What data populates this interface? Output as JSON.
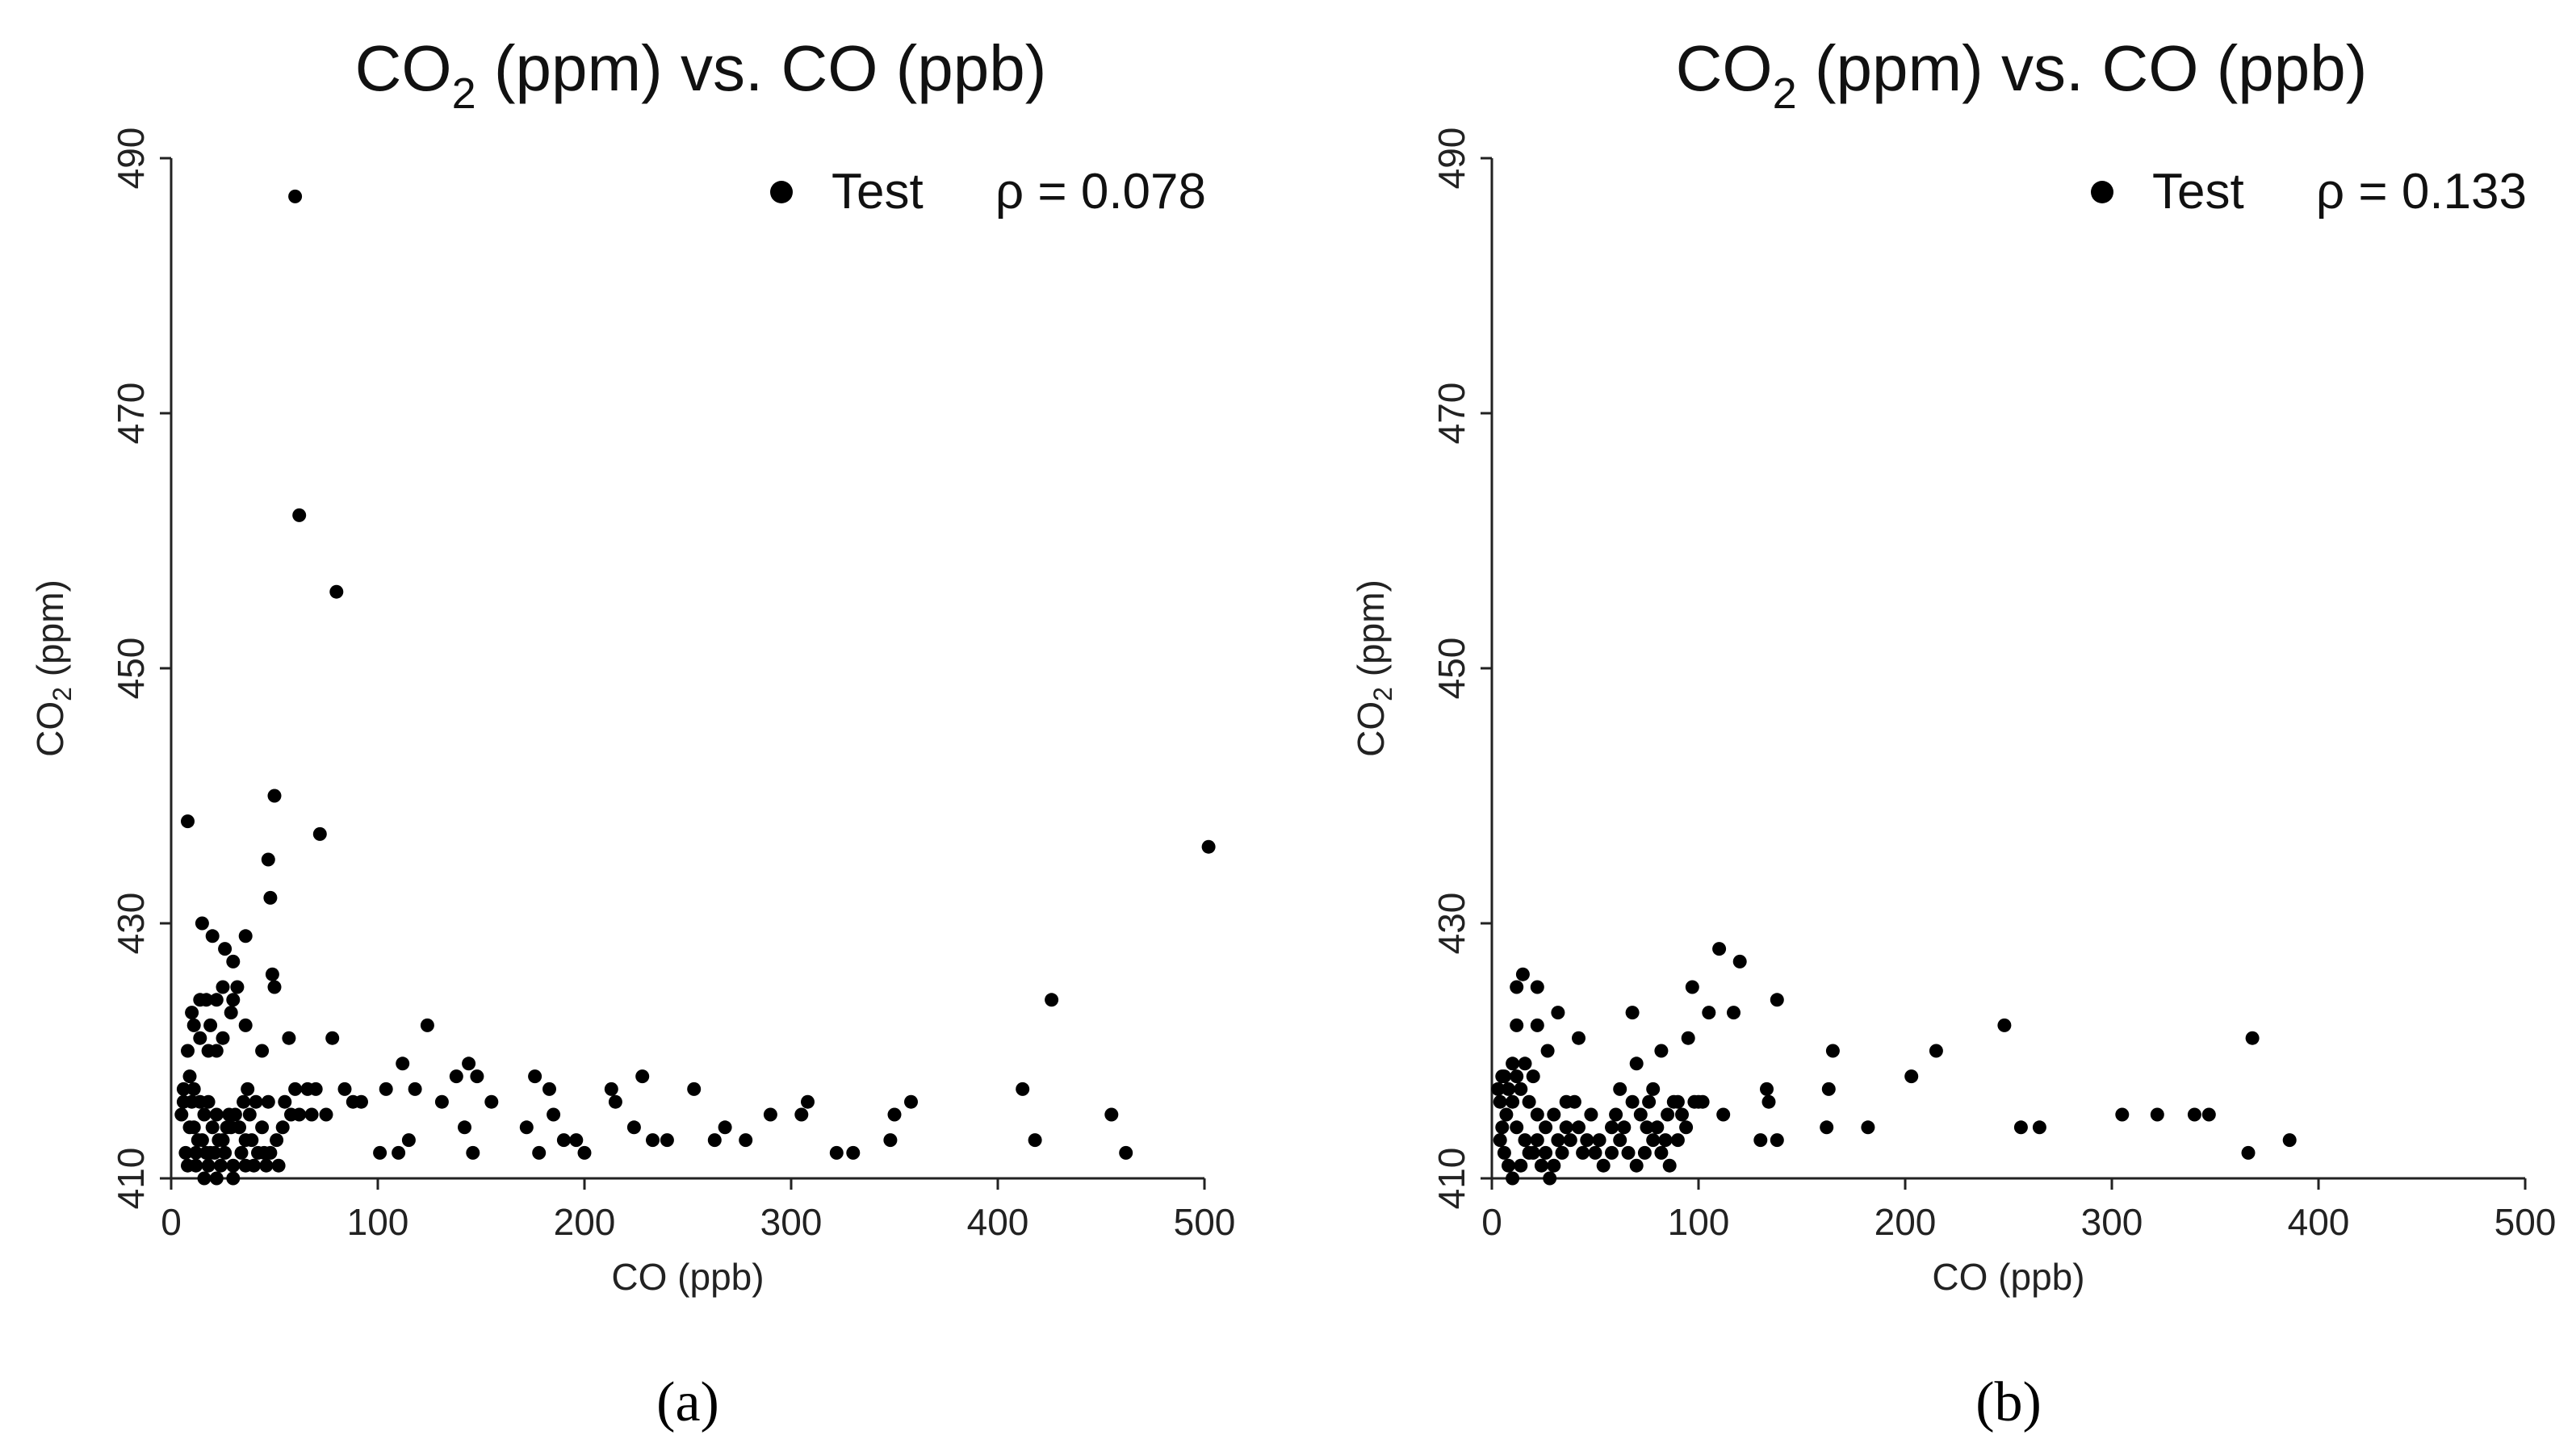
{
  "chart_data": [
    {
      "type": "scatter",
      "panel_label": "(a)",
      "title": "CO2 (ppm) vs. CO (ppb)",
      "title_parts": {
        "pre": "CO",
        "sub": "2",
        "post": " (ppm) vs. CO (ppb)"
      },
      "xlabel": "CO (ppb)",
      "ylabel_parts": {
        "pre": "CO",
        "sub": "2",
        "post": " (ppm)"
      },
      "xlim": [
        0,
        500
      ],
      "ylim": [
        410,
        490
      ],
      "xticks": [
        "0",
        "100",
        "200",
        "300",
        "400",
        "500"
      ],
      "yticks": [
        "410",
        "430",
        "450",
        "470",
        "490"
      ],
      "legend": {
        "label": "Test",
        "stat": "ρ = 0.078",
        "position": "top-right"
      },
      "colors": {
        "marker": "#000000",
        "axis": "#222222"
      },
      "series": [
        {
          "name": "Test",
          "points": [
            [
              60,
              487
            ],
            [
              62,
              462
            ],
            [
              80,
              456
            ],
            [
              8,
              438
            ],
            [
              50,
              440
            ],
            [
              72,
              437
            ],
            [
              47,
              435
            ],
            [
              48,
              432
            ],
            [
              502,
              436
            ],
            [
              15,
              430
            ],
            [
              36,
              429
            ],
            [
              20,
              429
            ],
            [
              26,
              428
            ],
            [
              30,
              427
            ],
            [
              49,
              426
            ],
            [
              50,
              425
            ],
            [
              32,
              425
            ],
            [
              25,
              425
            ],
            [
              30,
              424
            ],
            [
              17,
              424
            ],
            [
              22,
              424
            ],
            [
              14,
              424
            ],
            [
              10,
              423
            ],
            [
              29,
              423
            ],
            [
              36,
              422
            ],
            [
              426,
              424
            ],
            [
              124,
              422
            ],
            [
              11,
              422
            ],
            [
              19,
              422
            ],
            [
              25,
              421
            ],
            [
              57,
              421
            ],
            [
              78,
              421
            ],
            [
              14,
              421
            ],
            [
              22,
              420
            ],
            [
              18,
              420
            ],
            [
              44,
              420
            ],
            [
              8,
              420
            ],
            [
              412,
              417
            ],
            [
              148,
              418
            ],
            [
              176,
              418
            ],
            [
              213,
              417
            ],
            [
              228,
              418
            ],
            [
              253,
              417
            ],
            [
              138,
              418
            ],
            [
              183,
              417
            ],
            [
              112,
              419
            ],
            [
              144,
              419
            ],
            [
              118,
              417
            ],
            [
              104,
              417
            ],
            [
              84,
              417
            ],
            [
              66,
              417
            ],
            [
              70,
              417
            ],
            [
              131,
              416
            ],
            [
              155,
              416
            ],
            [
              185,
              415
            ],
            [
              215,
              416
            ],
            [
              290,
              415
            ],
            [
              308,
              416
            ],
            [
              358,
              416
            ],
            [
              350,
              415
            ],
            [
              455,
              415
            ],
            [
              268,
              414
            ],
            [
              240,
              413
            ],
            [
              224,
              414
            ],
            [
              233,
              413
            ],
            [
              263,
              413
            ],
            [
              278,
              413
            ],
            [
              305,
              415
            ],
            [
              348,
              413
            ],
            [
              322,
              412
            ],
            [
              330,
              412
            ],
            [
              462,
              412
            ],
            [
              418,
              413
            ],
            [
              172,
              414
            ],
            [
              190,
              413
            ],
            [
              196,
              413
            ],
            [
              200,
              412
            ],
            [
              178,
              412
            ],
            [
              146,
              412
            ],
            [
              142,
              414
            ],
            [
              115,
              413
            ],
            [
              101,
              412
            ],
            [
              110,
              412
            ],
            [
              88,
              416
            ],
            [
              92,
              416
            ],
            [
              60,
              417
            ],
            [
              55,
              416
            ],
            [
              47,
              416
            ],
            [
              41,
              416
            ],
            [
              37,
              417
            ],
            [
              35,
              416
            ],
            [
              31,
              415
            ],
            [
              28,
              415
            ],
            [
              22,
              415
            ],
            [
              18,
              416
            ],
            [
              14,
              416
            ],
            [
              10,
              416
            ],
            [
              6,
              416
            ],
            [
              5,
              415
            ],
            [
              9,
              414
            ],
            [
              11,
              414
            ],
            [
              13,
              413
            ],
            [
              15,
              413
            ],
            [
              17,
              412
            ],
            [
              19,
              412
            ],
            [
              21,
              412
            ],
            [
              23,
              413
            ],
            [
              25,
              413
            ],
            [
              27,
              414
            ],
            [
              29,
              414
            ],
            [
              33,
              414
            ],
            [
              36,
              413
            ],
            [
              39,
              413
            ],
            [
              42,
              412
            ],
            [
              45,
              412
            ],
            [
              48,
              412
            ],
            [
              51,
              413
            ],
            [
              54,
              414
            ],
            [
              58,
              415
            ],
            [
              62,
              415
            ],
            [
              68,
              415
            ],
            [
              75,
              415
            ],
            [
              8,
              411
            ],
            [
              12,
              411
            ],
            [
              18,
              411
            ],
            [
              24,
              411
            ],
            [
              30,
              411
            ],
            [
              36,
              411
            ],
            [
              40,
              411
            ],
            [
              46,
              411
            ],
            [
              52,
              411
            ],
            [
              30,
              410
            ],
            [
              22,
              410
            ],
            [
              16,
              410
            ],
            [
              12,
              412
            ],
            [
              7,
              412
            ],
            [
              44,
              414
            ],
            [
              38,
              415
            ],
            [
              34,
              412
            ],
            [
              26,
              412
            ],
            [
              20,
              414
            ],
            [
              16,
              415
            ],
            [
              11,
              417
            ],
            [
              9,
              418
            ],
            [
              6,
              417
            ]
          ]
        }
      ]
    },
    {
      "type": "scatter",
      "panel_label": "(b)",
      "title": "CO2 (ppm) vs. CO (ppb)",
      "title_parts": {
        "pre": "CO",
        "sub": "2",
        "post": " (ppm) vs. CO (ppb)"
      },
      "xlabel": "CO (ppb)",
      "ylabel_parts": {
        "pre": "CO",
        "sub": "2",
        "post": " (ppm)"
      },
      "xlim": [
        0,
        500
      ],
      "ylim": [
        410,
        490
      ],
      "xticks": [
        "0",
        "100",
        "200",
        "300",
        "400",
        "500"
      ],
      "yticks": [
        "410",
        "430",
        "450",
        "470",
        "490"
      ],
      "legend": {
        "label": "Test",
        "stat": "ρ = 0.133",
        "position": "top-right"
      },
      "colors": {
        "marker": "#000000",
        "axis": "#222222"
      },
      "series": [
        {
          "name": "Test",
          "points": [
            [
              110,
              428
            ],
            [
              120,
              427
            ],
            [
              15,
              426
            ],
            [
              22,
              425
            ],
            [
              12,
              425
            ],
            [
              97,
              425
            ],
            [
              138,
              424
            ],
            [
              105,
              423
            ],
            [
              117,
              423
            ],
            [
              68,
              423
            ],
            [
              32,
              423
            ],
            [
              12,
              422
            ],
            [
              22,
              422
            ],
            [
              248,
              422
            ],
            [
              95,
              421
            ],
            [
              368,
              421
            ],
            [
              42,
              421
            ],
            [
              215,
              420
            ],
            [
              165,
              420
            ],
            [
              27,
              420
            ],
            [
              82,
              420
            ],
            [
              70,
              419
            ],
            [
              10,
              419
            ],
            [
              5,
              418
            ],
            [
              20,
              418
            ],
            [
              203,
              418
            ],
            [
              62,
              417
            ],
            [
              133,
              417
            ],
            [
              163,
              417
            ],
            [
              78,
              417
            ],
            [
              100,
              416
            ],
            [
              90,
              416
            ],
            [
              112,
              415
            ],
            [
              134,
              416
            ],
            [
              162,
              414
            ],
            [
              182,
              414
            ],
            [
              130,
              413
            ],
            [
              138,
              413
            ],
            [
              256,
              414
            ],
            [
              265,
              414
            ],
            [
              305,
              415
            ],
            [
              322,
              415
            ],
            [
              340,
              415
            ],
            [
              347,
              415
            ],
            [
              366,
              412
            ],
            [
              386,
              413
            ],
            [
              85,
              415
            ],
            [
              75,
              414
            ],
            [
              58,
              414
            ],
            [
              48,
              415
            ],
            [
              40,
              416
            ],
            [
              36,
              416
            ],
            [
              30,
              415
            ],
            [
              26,
              414
            ],
            [
              22,
              415
            ],
            [
              18,
              416
            ],
            [
              14,
              417
            ],
            [
              10,
              416
            ],
            [
              7,
              415
            ],
            [
              5,
              414
            ],
            [
              4,
              413
            ],
            [
              6,
              412
            ],
            [
              8,
              411
            ],
            [
              10,
              410
            ],
            [
              14,
              411
            ],
            [
              18,
              412
            ],
            [
              22,
              413
            ],
            [
              26,
              412
            ],
            [
              30,
              411
            ],
            [
              34,
              412
            ],
            [
              38,
              413
            ],
            [
              42,
              414
            ],
            [
              46,
              413
            ],
            [
              50,
              412
            ],
            [
              54,
              411
            ],
            [
              58,
              412
            ],
            [
              62,
              413
            ],
            [
              66,
              412
            ],
            [
              70,
              411
            ],
            [
              74,
              412
            ],
            [
              78,
              413
            ],
            [
              82,
              412
            ],
            [
              86,
              411
            ],
            [
              90,
              413
            ],
            [
              94,
              414
            ],
            [
              12,
              414
            ],
            [
              16,
              413
            ],
            [
              20,
              412
            ],
            [
              24,
              411
            ],
            [
              28,
              410
            ],
            [
              32,
              413
            ],
            [
              36,
              414
            ],
            [
              44,
              412
            ],
            [
              52,
              413
            ],
            [
              60,
              415
            ],
            [
              64,
              414
            ],
            [
              68,
              416
            ],
            [
              72,
              415
            ],
            [
              76,
              416
            ],
            [
              80,
              414
            ],
            [
              84,
              413
            ],
            [
              88,
              416
            ],
            [
              92,
              415
            ],
            [
              98,
              416
            ],
            [
              102,
              416
            ],
            [
              8,
              417
            ],
            [
              12,
              418
            ],
            [
              16,
              419
            ],
            [
              4,
              416
            ],
            [
              6,
              418
            ],
            [
              3,
              417
            ]
          ]
        }
      ]
    }
  ]
}
